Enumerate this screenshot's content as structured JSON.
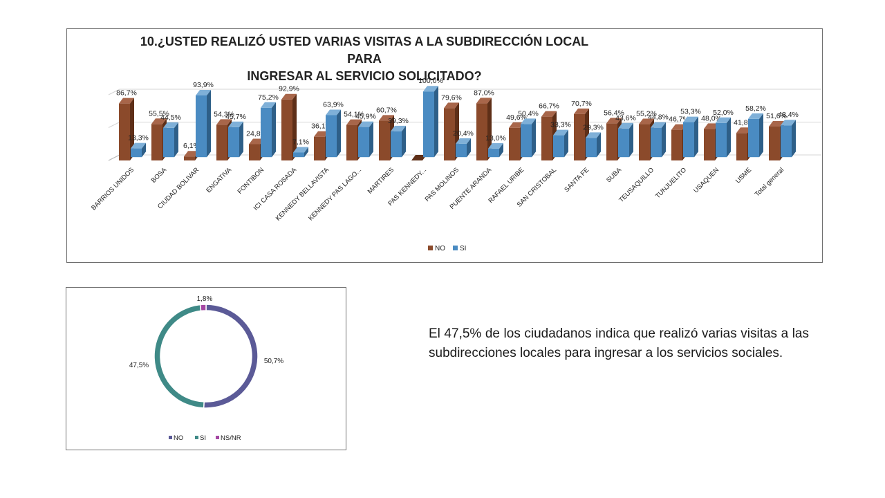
{
  "chart_data": [
    {
      "type": "bar",
      "title_line1": "10.¿USTED REALIZÓ USTED VARIAS VISITAS A LA SUBDIRECCIÓN LOCAL PARA",
      "title_line2": "INGRESAR AL SERVICIO SOLICITADO?",
      "categories": [
        "BARRIOS UNIDOS",
        "BOSA",
        "CIUDAD BOLIVAR",
        "ENGATIVA",
        "FONTIBON",
        "ICI CASA ROSADA",
        "KENNEDY BELLAVISTA",
        "KENNEDY PAS LAGO...",
        "MARTIRES",
        "PAS KENNEDY...",
        "PAS MOLINOS",
        "PUENTE ARANDA",
        "RAFAEL URIBE",
        "SAN CRISTOBAL",
        "SANTA FE",
        "SUBA",
        "TEUSAQUILLO",
        "TUNJUELITO",
        "USAQUEN",
        "USME",
        "Total general"
      ],
      "series": [
        {
          "name": "NO",
          "color": "#8B4A2B",
          "side": "#5E2F18",
          "top": "#A8664A",
          "values": [
            86.7,
            55.5,
            6.1,
            54.3,
            24.8,
            92.9,
            36.1,
            54.1,
            60.7,
            0.0,
            79.6,
            87.0,
            49.6,
            66.7,
            70.7,
            56.4,
            55.2,
            46.7,
            48.0,
            41.8,
            51.6
          ],
          "labels": [
            "86,7%",
            "55,5%",
            "6,1%",
            "54,3%",
            "24,8%",
            "92,9%",
            "36,1%",
            "54,1%",
            "60,7%",
            "",
            "79,6%",
            "87,0%",
            "49,6%",
            "66,7%",
            "70,7%",
            "56,4%",
            "55,2%",
            "46,7%",
            "48,0%",
            "41,8%",
            "51,6%"
          ]
        },
        {
          "name": "SI",
          "color": "#4A8BC2",
          "side": "#2E5F88",
          "top": "#7FB0D8",
          "values": [
            13.3,
            44.5,
            93.9,
            45.7,
            75.2,
            7.1,
            63.9,
            45.9,
            39.3,
            100.0,
            20.4,
            13.0,
            50.4,
            33.3,
            29.3,
            43.6,
            44.8,
            53.3,
            52.0,
            58.2,
            48.4
          ],
          "labels": [
            "13,3%",
            "44,5%",
            "93,9%",
            "45,7%",
            "75,2%",
            "7,1%",
            "63,9%",
            "45,9%",
            "39,3%",
            "100,0%",
            "20,4%",
            "13,0%",
            "50,4%",
            "33,3%",
            "29,3%",
            "43,6%",
            "44,8%",
            "53,3%",
            "52,0%",
            "58,2%",
            "48,4%"
          ]
        }
      ],
      "ylim": [
        0,
        100
      ],
      "legend": "bottom"
    },
    {
      "type": "pie",
      "variant": "donut",
      "slices": [
        {
          "name": "NO",
          "value": 50.7,
          "label": "50,7%",
          "color": "#5B5A97"
        },
        {
          "name": "SI",
          "value": 47.5,
          "label": "47,5%",
          "color": "#3F8A87"
        },
        {
          "name": "NS/NR",
          "value": 1.8,
          "label": "1,8%",
          "color": "#A547A3"
        }
      ],
      "legend": "bottom"
    }
  ],
  "summary": "El 47,5% de los ciudadanos indica que realizó varias visitas a las subdirecciones locales  para ingresar a los servicios sociales."
}
